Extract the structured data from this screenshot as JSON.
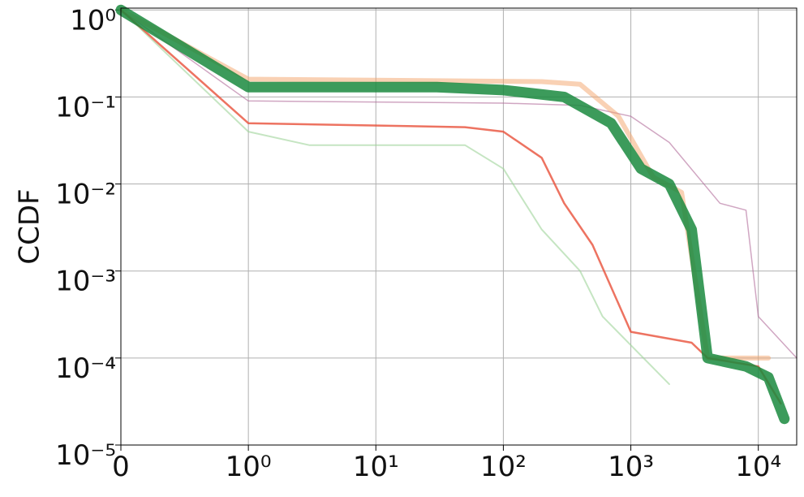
{
  "chart_data": {
    "type": "line",
    "y_label": "CCDF",
    "xscale": "symlog",
    "yscale": "log",
    "grid": true,
    "xlim": [
      0,
      20000
    ],
    "ylim": [
      1e-05,
      1.05
    ],
    "xticks": [
      0,
      {
        "value": 1,
        "label": "10⁰"
      },
      {
        "value": 10,
        "label": "10¹"
      },
      {
        "value": 100,
        "label": "10²"
      },
      {
        "value": 1000,
        "label": "10³"
      },
      {
        "value": 10000,
        "label": "10⁴"
      }
    ],
    "yticks": [
      {
        "value": 1e-05,
        "label": "10⁻⁵"
      },
      {
        "value": 0.0001,
        "label": "10⁻⁴"
      },
      {
        "value": 0.001,
        "label": "10⁻³"
      },
      {
        "value": 0.01,
        "label": "10⁻²"
      },
      {
        "value": 0.1,
        "label": "10⁻¹"
      },
      {
        "value": 1,
        "label": "10⁰"
      }
    ],
    "series": [
      {
        "color": "#9fd39a",
        "width": 2,
        "opacity": 0.6,
        "x": [
          0,
          1,
          3,
          50,
          100,
          200,
          400,
          600,
          2000
        ],
        "values": [
          1,
          0.04,
          0.028,
          0.028,
          0.015,
          0.003,
          0.001,
          0.0003,
          5e-05
        ]
      },
      {
        "color": "#b06a9a",
        "width": 1.5,
        "opacity": 0.6,
        "x": [
          0,
          1,
          100,
          400,
          1000,
          2000,
          5000,
          8000,
          10000,
          20000
        ],
        "values": [
          1,
          0.09,
          0.085,
          0.08,
          0.06,
          0.03,
          0.006,
          0.005,
          0.0003,
          0.0001
        ]
      },
      {
        "color": "#f4a46a",
        "width": 6,
        "opacity": 0.5,
        "x": [
          0,
          1,
          200,
          400,
          800,
          1500,
          2500,
          4000,
          12000
        ],
        "values": [
          1,
          0.16,
          0.15,
          0.14,
          0.06,
          0.012,
          0.008,
          0.0001,
          0.0001
        ]
      },
      {
        "color": "#e8503a",
        "width": 2.5,
        "opacity": 0.8,
        "x": [
          0,
          1,
          50,
          100,
          200,
          300,
          500,
          1000,
          3000,
          4000,
          10000,
          15000
        ],
        "values": [
          1,
          0.05,
          0.045,
          0.04,
          0.02,
          0.006,
          0.002,
          0.0002,
          0.00015,
          0.0001,
          8e-05,
          3e-05
        ]
      },
      {
        "color": "#1a8a3e",
        "width": 13,
        "opacity": 0.85,
        "x": [
          0,
          1,
          30,
          100,
          300,
          700,
          1200,
          2000,
          3000,
          4000,
          8000,
          12000,
          16000
        ],
        "values": [
          1,
          0.13,
          0.13,
          0.12,
          0.1,
          0.05,
          0.015,
          0.01,
          0.003,
          0.0001,
          8e-05,
          6e-05,
          2e-05
        ]
      }
    ]
  }
}
